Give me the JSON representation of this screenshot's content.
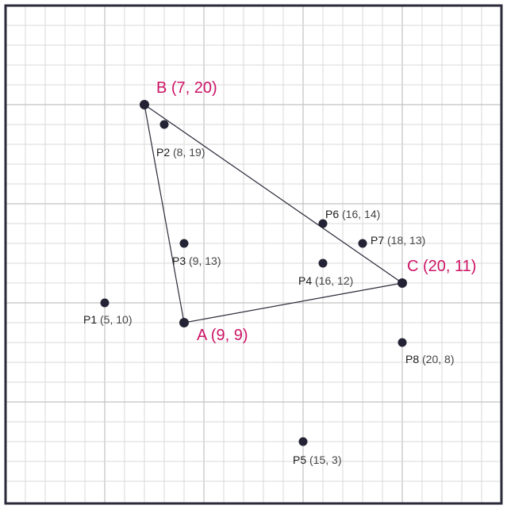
{
  "grid": {
    "x_min": 0,
    "x_max": 25,
    "y_min": 0,
    "y_max": 25,
    "major_every": 5
  },
  "colors": {
    "vertex_label": "#cc1466",
    "point": "#232335",
    "grid": "#d9d9d9",
    "frame": "#2a2a3a"
  },
  "triangle": [
    "B",
    "C",
    "A"
  ],
  "vertices": [
    {
      "id": "A",
      "x": 9,
      "y": 9,
      "label": "A (9, 9)"
    },
    {
      "id": "B",
      "x": 7,
      "y": 20,
      "label": "B (7, 20)"
    },
    {
      "id": "C",
      "x": 20,
      "y": 11,
      "label": "C (20, 11)"
    }
  ],
  "points": [
    {
      "id": "P1",
      "x": 5,
      "y": 10,
      "name": "P1",
      "coords": "(5, 10)"
    },
    {
      "id": "P2",
      "x": 8,
      "y": 19,
      "name": "P2",
      "coords": "(8, 19)"
    },
    {
      "id": "P3",
      "x": 9,
      "y": 13,
      "name": "P3",
      "coords": "(9, 13)"
    },
    {
      "id": "P4",
      "x": 16,
      "y": 12,
      "name": "P4",
      "coords": "(16, 12)"
    },
    {
      "id": "P5",
      "x": 15,
      "y": 3,
      "name": "P5",
      "coords": "(15, 3)"
    },
    {
      "id": "P6",
      "x": 16,
      "y": 14,
      "name": "P6",
      "coords": "(16, 14)"
    },
    {
      "id": "P7",
      "x": 18,
      "y": 13,
      "name": "P7",
      "coords": "(18, 13)"
    },
    {
      "id": "P8",
      "x": 20,
      "y": 8,
      "name": "P8",
      "coords": "(20, 8)"
    }
  ]
}
